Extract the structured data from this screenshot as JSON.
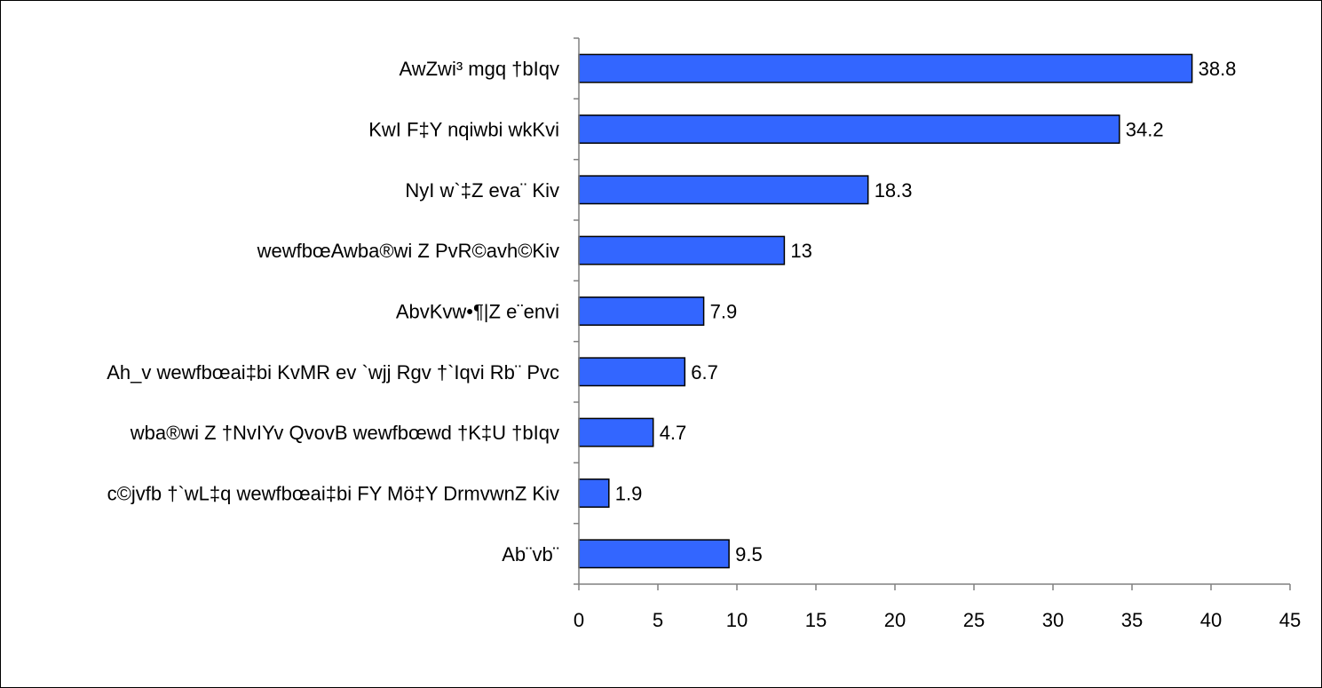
{
  "chart_data": {
    "type": "bar",
    "orientation": "horizontal",
    "title": "",
    "xlabel": "",
    "ylabel": "",
    "categories": [
      "AwZwi³ mgq †bIqv",
      "KwI F‡Y nqiwbi wkKvi",
      "NyI w`‡Z eva¨ Kiv",
      "wewfbœAwba®wi Z PvR©avh©Kiv",
      "AbvKvw•¶|Z e¨envi",
      "Ah_v wewfbœai‡bi KvMR ev `wjj Rgv †`Iqvi Rb¨ Pvc",
      "wba®wi Z †NvIYv QvovB wewfbœwd †K‡U †bIqv",
      "c©jvfb †`wL‡q wewfbœai‡bi FY Mö‡Y DrmvwnZ Kiv",
      "Ab¨vb¨"
    ],
    "values": [
      38.8,
      34.2,
      18.3,
      13,
      7.9,
      6.7,
      4.7,
      1.9,
      9.5
    ],
    "value_labels": [
      "38.8",
      "34.2",
      "18.3",
      "13",
      "7.9",
      "6.7",
      "4.7",
      "1.9",
      "9.5"
    ],
    "xlim": [
      0,
      45
    ],
    "x_ticks": [
      0,
      5,
      10,
      15,
      20,
      25,
      30,
      35,
      40,
      45
    ],
    "grid": false,
    "legend": "none",
    "colors": {
      "bar_fill": "#3366FF",
      "bar_stroke": "#000000",
      "axis": "#808080",
      "text": "#000000",
      "background": "#FFFFFF"
    }
  }
}
